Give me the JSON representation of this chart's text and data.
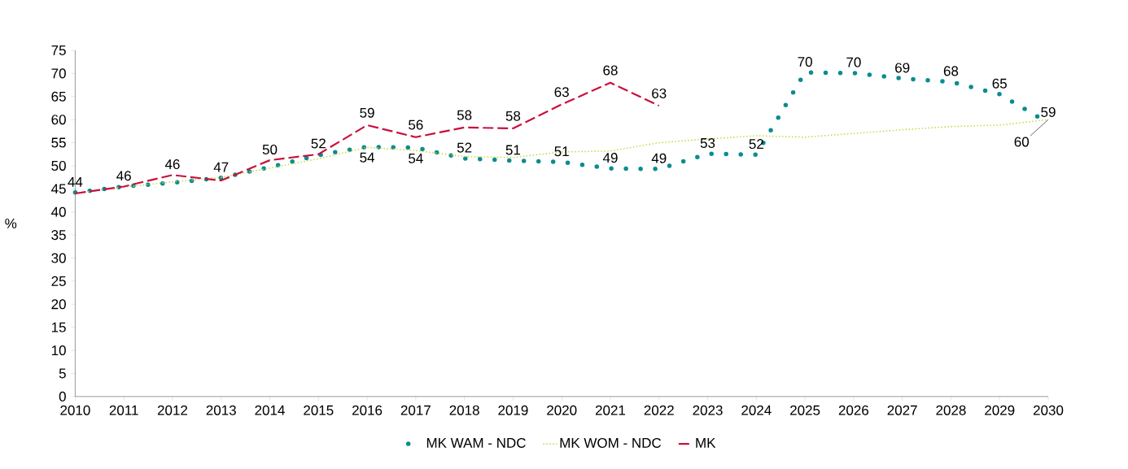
{
  "chart_data": {
    "type": "line",
    "ylabel": "%",
    "x": [
      2010,
      2011,
      2012,
      2013,
      2014,
      2015,
      2016,
      2017,
      2018,
      2019,
      2020,
      2021,
      2022,
      2023,
      2024,
      2025,
      2026,
      2027,
      2028,
      2029,
      2030
    ],
    "xlim": [
      2010,
      2030
    ],
    "xticks": [
      2010,
      2011,
      2012,
      2013,
      2014,
      2015,
      2016,
      2017,
      2018,
      2019,
      2020,
      2021,
      2022,
      2023,
      2024,
      2025,
      2026,
      2027,
      2028,
      2029,
      2030
    ],
    "ylim": [
      0,
      75
    ],
    "yticks": [
      0,
      5,
      10,
      15,
      20,
      25,
      30,
      35,
      40,
      45,
      50,
      55,
      60,
      65,
      70,
      75
    ],
    "legend": "bottom",
    "grid": false,
    "series": [
      {
        "name": "MK WAM - NDC",
        "color": "#0b8c8f",
        "line_style": "dotted",
        "values": [
          44.2,
          45.5,
          46.3,
          47.4,
          49.7,
          52.3,
          54.1,
          53.9,
          51.6,
          51.1,
          50.8,
          49.4,
          49.3,
          52.6,
          52.4,
          70.2,
          70.1,
          68.9,
          68.2,
          65.5,
          59.3
        ],
        "value_labels": [
          "44",
          "46",
          "46",
          "47",
          "50",
          "52",
          "54",
          "54",
          "52",
          "51",
          "51",
          "49",
          "49",
          "53",
          "52",
          "70",
          "70",
          "69",
          "68",
          "65",
          "59"
        ]
      },
      {
        "name": "MK WOM - NDC",
        "color": "#c8d84a",
        "line_style": "dotted",
        "values": [
          44.0,
          45.4,
          46.5,
          47.5,
          49.5,
          51.5,
          54.0,
          53.3,
          52.0,
          51.8,
          53.0,
          53.2,
          55.0,
          55.8,
          56.5,
          56.2,
          57.0,
          57.8,
          58.5,
          58.8,
          60.0
        ],
        "value_labels": [
          null,
          null,
          null,
          null,
          null,
          null,
          null,
          null,
          null,
          null,
          null,
          null,
          null,
          null,
          null,
          null,
          null,
          null,
          null,
          null,
          "60"
        ]
      },
      {
        "name": "MK",
        "color": "#c8103e",
        "line_style": "dashed",
        "values": [
          44.0,
          45.5,
          48.0,
          46.8,
          51.2,
          52.5,
          58.8,
          56.2,
          58.3,
          58.1,
          63.3,
          68.0,
          63.0,
          null,
          null,
          null,
          null,
          null,
          null,
          null,
          null
        ],
        "value_labels": [
          null,
          null,
          null,
          null,
          null,
          null,
          "59",
          "56",
          "58",
          "58",
          "63",
          "68",
          "63",
          null,
          null,
          null,
          null,
          null,
          null,
          null,
          null
        ]
      }
    ]
  }
}
